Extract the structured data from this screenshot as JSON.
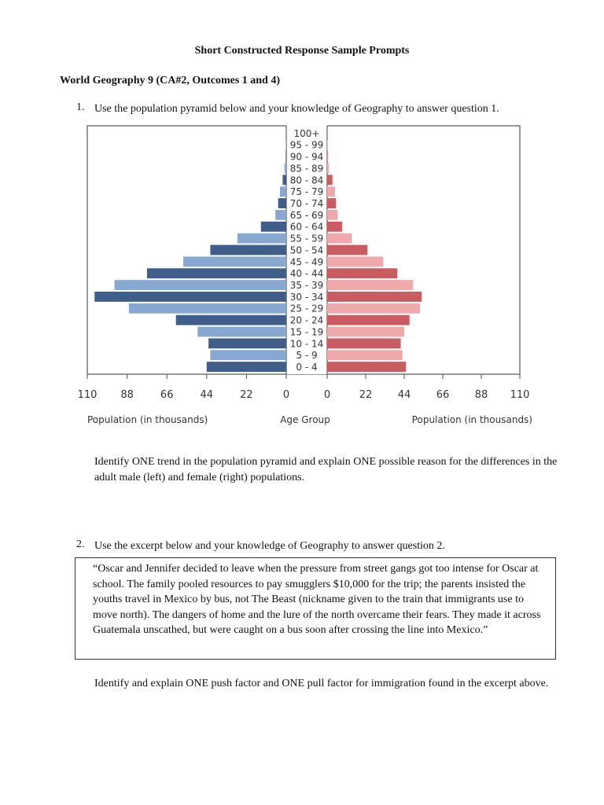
{
  "title": "Short Constructed Response Sample Prompts",
  "subtitle": "World Geography 9 (CA#2, Outcomes 1 and 4)",
  "q1": {
    "number": "1.",
    "text": "Use the population pyramid below and your knowledge of Geography to answer question 1."
  },
  "q1_prompt": "Identify ONE trend in the population pyramid and explain ONE possible reason for the differences in the adult male (left) and female (right) populations.",
  "q2": {
    "number": "2.",
    "text": "Use the excerpt below and your knowledge of Geography to answer question 2."
  },
  "excerpt": "“Oscar and Jennifer decided to leave when the pressure from street gangs got too intense for Oscar at school. The family pooled resources to pay smugglers $10,000 for the trip; the parents insisted the youths travel in Mexico by bus, not The Beast (nickname given to the train that immigrants use to move north). The dangers of home and the lure of the north overcame their fears. They made it across Guatemala unscathed, but were caught on a bus soon after crossing the line into Mexico.”",
  "q2_prompt": "Identify and explain ONE push factor and ONE pull factor for immigration found in the excerpt above.",
  "chart_data": {
    "type": "bar",
    "subtype": "population-pyramid",
    "categories": [
      "100+",
      "95 - 99",
      "90 - 94",
      "85 - 89",
      "80 - 84",
      "75 - 79",
      "70 - 74",
      "65 - 69",
      "60 - 64",
      "55 - 59",
      "50 - 54",
      "45 - 49",
      "40 - 44",
      "35 - 39",
      "30 - 34",
      "25 - 29",
      "20 - 24",
      "15 - 19",
      "10 - 14",
      "5 - 9",
      "0 - 4"
    ],
    "series": [
      {
        "side": "left",
        "values": [
          0.2,
          0.3,
          0.3,
          1,
          2,
          3.5,
          4.5,
          6,
          14,
          27,
          42,
          57,
          77,
          95,
          106,
          87,
          61,
          49,
          43,
          42,
          44
        ],
        "colors": [
          "#3f5f8a",
          "#87a8d0"
        ]
      },
      {
        "side": "right",
        "values": [
          0.1,
          0.2,
          0.3,
          1,
          3,
          4.5,
          5,
          6,
          8.5,
          14,
          23,
          32,
          40,
          49,
          54,
          53,
          47,
          44,
          42,
          43,
          45
        ],
        "colors": [
          "#c95c60",
          "#f0a9ab"
        ]
      }
    ],
    "xticks": [
      "110",
      "88",
      "66",
      "44",
      "22",
      "0"
    ],
    "xlim": [
      0,
      110
    ],
    "xlabel_left": "Population (in thousands)",
    "xlabel_center": "Age Group",
    "xlabel_right": "Population (in thousands)"
  }
}
